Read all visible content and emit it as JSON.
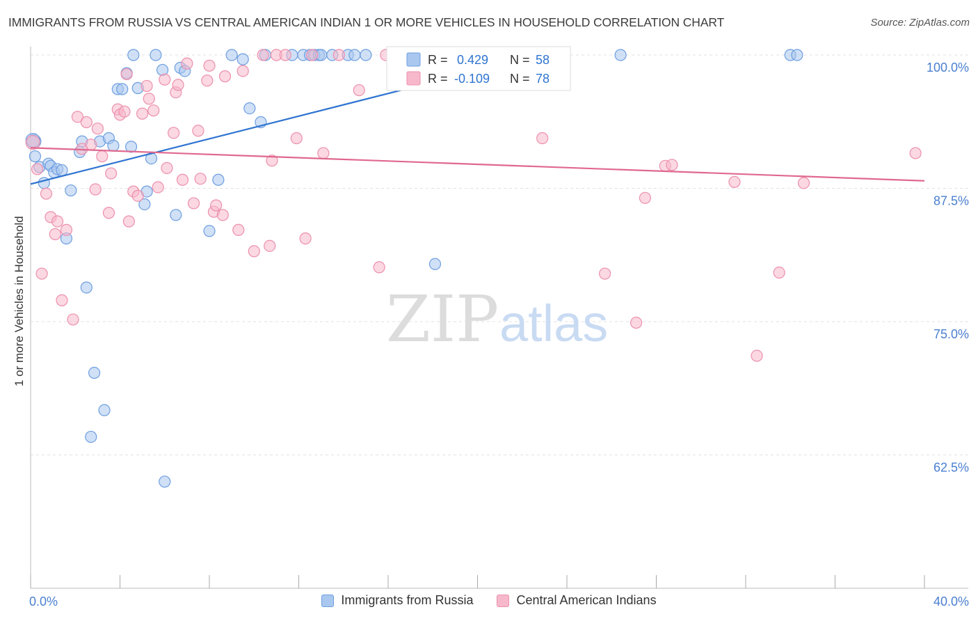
{
  "title": "IMMIGRANTS FROM RUSSIA VS CENTRAL AMERICAN INDIAN 1 OR MORE VEHICLES IN HOUSEHOLD CORRELATION CHART",
  "source": "Source: ZipAtlas.com",
  "watermark": {
    "zip": "ZIP",
    "atlas": "atlas"
  },
  "colors": {
    "blue_fill": "#a9c7ef",
    "blue_stroke": "#6d9ee0",
    "blue_line": "#2f74d0",
    "pink_fill": "#f7b8cb",
    "pink_stroke": "#ec8fad",
    "pink_line": "#e0688f",
    "axis_label": "#4a7fd0",
    "grid": "#e2e2e2"
  },
  "stats": [
    {
      "r_label": "R =",
      "r_value": "0.429",
      "n_label": "N =",
      "n_value": "58"
    },
    {
      "r_label": "R =",
      "r_value": "-0.109",
      "n_label": "N =",
      "n_value": "78"
    }
  ],
  "chart_data": {
    "type": "scatter",
    "title": "IMMIGRANTS FROM RUSSIA VS CENTRAL AMERICAN INDIAN 1 OR MORE VEHICLES IN HOUSEHOLD CORRELATION CHART",
    "xlabel": "",
    "ylabel": "1 or more Vehicles in Household",
    "xlim": [
      0,
      40
    ],
    "ylim": [
      50,
      100
    ],
    "x_tick_labels": [
      "0.0%",
      "40.0%"
    ],
    "y_ticks": [
      62.5,
      75.0,
      87.5,
      100.0
    ],
    "y_tick_labels": [
      "62.5%",
      "75.0%",
      "87.5%",
      "100.0%"
    ],
    "grid": true,
    "legend_position": "bottom",
    "series": [
      {
        "name": "Immigrants from Russia",
        "color": "blue",
        "r": 0.429,
        "n": 58,
        "trend": {
          "x0": 0,
          "y0": 87.9,
          "x1": 22.8,
          "y1": 100.0
        },
        "points": [
          [
            0.15,
            91.9
          ],
          [
            0.2,
            90.5
          ],
          [
            0.4,
            89.5
          ],
          [
            0.6,
            88.0
          ],
          [
            0.8,
            89.8
          ],
          [
            0.9,
            89.6
          ],
          [
            1.05,
            89.0
          ],
          [
            1.2,
            89.3
          ],
          [
            1.4,
            89.2
          ],
          [
            1.8,
            87.3
          ],
          [
            2.2,
            90.9
          ],
          [
            2.3,
            91.9
          ],
          [
            2.5,
            78.2
          ],
          [
            2.7,
            64.2
          ],
          [
            2.85,
            70.2
          ],
          [
            3.1,
            91.9
          ],
          [
            3.3,
            66.7
          ],
          [
            3.5,
            92.2
          ],
          [
            3.7,
            91.5
          ],
          [
            3.9,
            96.8
          ],
          [
            4.1,
            96.8
          ],
          [
            4.3,
            98.3
          ],
          [
            4.5,
            91.4
          ],
          [
            4.6,
            100
          ],
          [
            4.8,
            96.9
          ],
          [
            5.1,
            86.0
          ],
          [
            5.2,
            87.2
          ],
          [
            5.4,
            90.3
          ],
          [
            5.6,
            100
          ],
          [
            5.9,
            98.6
          ],
          [
            6.0,
            60.0
          ],
          [
            6.5,
            85.0
          ],
          [
            6.7,
            98.8
          ],
          [
            6.9,
            98.5
          ],
          [
            8.0,
            83.5
          ],
          [
            8.4,
            88.3
          ],
          [
            9.0,
            100
          ],
          [
            9.5,
            99.6
          ],
          [
            9.8,
            95.0
          ],
          [
            10.3,
            93.7
          ],
          [
            10.5,
            100
          ],
          [
            11.7,
            100
          ],
          [
            12.2,
            100
          ],
          [
            12.5,
            100
          ],
          [
            12.7,
            100
          ],
          [
            12.9,
            100
          ],
          [
            13.0,
            100
          ],
          [
            13.5,
            100
          ],
          [
            14.2,
            100
          ],
          [
            14.5,
            100
          ],
          [
            15.0,
            100
          ],
          [
            18.1,
            80.4
          ],
          [
            22.2,
            100
          ],
          [
            26.4,
            100
          ],
          [
            34.0,
            100
          ],
          [
            34.3,
            100
          ],
          [
            0.1,
            92.0
          ],
          [
            1.6,
            82.8
          ]
        ]
      },
      {
        "name": "Central American Indians",
        "color": "pink",
        "r": -0.109,
        "n": 78,
        "trend": {
          "x0": 0,
          "y0": 91.3,
          "x1": 40,
          "y1": 88.2
        },
        "points": [
          [
            0.1,
            91.8
          ],
          [
            0.3,
            89.3
          ],
          [
            0.5,
            79.5
          ],
          [
            0.7,
            87.0
          ],
          [
            0.9,
            84.8
          ],
          [
            1.1,
            83.2
          ],
          [
            1.2,
            84.4
          ],
          [
            1.4,
            77.0
          ],
          [
            1.6,
            83.6
          ],
          [
            1.9,
            75.2
          ],
          [
            2.1,
            94.2
          ],
          [
            2.3,
            91.2
          ],
          [
            2.5,
            93.7
          ],
          [
            2.7,
            91.6
          ],
          [
            2.9,
            87.4
          ],
          [
            3.0,
            93.1
          ],
          [
            3.2,
            90.5
          ],
          [
            3.5,
            85.2
          ],
          [
            3.6,
            88.9
          ],
          [
            3.9,
            94.9
          ],
          [
            4.0,
            94.4
          ],
          [
            4.2,
            94.7
          ],
          [
            4.3,
            98.2
          ],
          [
            4.4,
            84.4
          ],
          [
            4.6,
            87.2
          ],
          [
            4.8,
            86.8
          ],
          [
            5.0,
            94.5
          ],
          [
            5.2,
            97.1
          ],
          [
            5.3,
            95.9
          ],
          [
            5.5,
            94.8
          ],
          [
            5.7,
            87.6
          ],
          [
            6.0,
            97.7
          ],
          [
            6.1,
            89.4
          ],
          [
            6.4,
            92.7
          ],
          [
            6.5,
            96.5
          ],
          [
            6.6,
            97.2
          ],
          [
            6.8,
            88.3
          ],
          [
            7.0,
            99.2
          ],
          [
            7.3,
            86.1
          ],
          [
            7.5,
            92.9
          ],
          [
            7.6,
            88.4
          ],
          [
            7.9,
            97.6
          ],
          [
            8.0,
            99.0
          ],
          [
            8.2,
            85.3
          ],
          [
            8.3,
            85.9
          ],
          [
            8.6,
            85.0
          ],
          [
            8.7,
            98.0
          ],
          [
            9.3,
            83.6
          ],
          [
            9.5,
            98.5
          ],
          [
            10.0,
            81.6
          ],
          [
            10.4,
            100
          ],
          [
            10.7,
            82.1
          ],
          [
            10.8,
            90.1
          ],
          [
            11.0,
            100
          ],
          [
            11.4,
            100
          ],
          [
            11.9,
            92.2
          ],
          [
            12.3,
            82.8
          ],
          [
            12.6,
            100
          ],
          [
            13.1,
            90.8
          ],
          [
            13.8,
            100
          ],
          [
            14.7,
            96.7
          ],
          [
            15.6,
            80.1
          ],
          [
            15.9,
            100
          ],
          [
            16.5,
            100
          ],
          [
            18.8,
            100
          ],
          [
            21.1,
            100
          ],
          [
            22.5,
            100
          ],
          [
            22.9,
            92.2
          ],
          [
            25.7,
            79.5
          ],
          [
            27.1,
            74.9
          ],
          [
            27.5,
            86.6
          ],
          [
            28.4,
            89.6
          ],
          [
            28.7,
            89.7
          ],
          [
            31.5,
            88.1
          ],
          [
            32.5,
            71.8
          ],
          [
            33.5,
            79.6
          ],
          [
            34.6,
            88.0
          ],
          [
            39.6,
            90.8
          ]
        ]
      }
    ]
  }
}
